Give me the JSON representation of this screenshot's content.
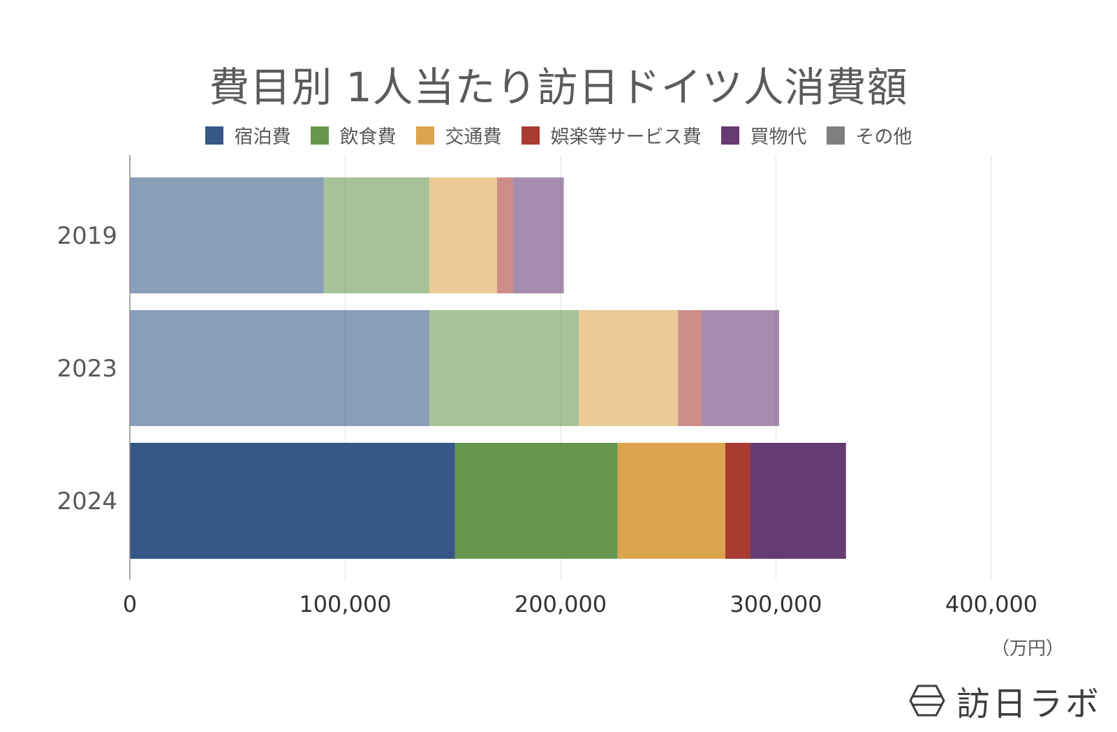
{
  "title": "費目別 1人当たり訪日ドイツ人消費額",
  "unit": "（万円）",
  "brand": {
    "name": "訪日ラボ",
    "icon": "hexagon-logo-icon"
  },
  "legend": [
    {
      "label": "宿泊費",
      "color": "#365787"
    },
    {
      "label": "飲食費",
      "color": "#66974d"
    },
    {
      "label": "交通費",
      "color": "#dca44e"
    },
    {
      "label": "娯楽等サービス費",
      "color": "#a93b33"
    },
    {
      "label": "買物代",
      "color": "#663b72"
    },
    {
      "label": "その他",
      "color": "#7f7f7f"
    }
  ],
  "chart_data": {
    "type": "bar",
    "orientation": "horizontal",
    "stacked": true,
    "categories": [
      "2019",
      "2023",
      "2024"
    ],
    "highlight_category": "2024",
    "xlim": [
      0,
      400000
    ],
    "x_ticks": [
      "0",
      "100,000",
      "200,000",
      "300,000",
      "400,000"
    ],
    "x_tick_values": [
      0,
      100000,
      200000,
      300000,
      400000
    ],
    "grid": true,
    "legend_position": "top",
    "series": [
      {
        "name": "宿泊費",
        "values": [
          90000,
          139000,
          151000
        ]
      },
      {
        "name": "飲食費",
        "values": [
          49000,
          69500,
          75500
        ]
      },
      {
        "name": "交通費",
        "values": [
          31500,
          46000,
          50000
        ]
      },
      {
        "name": "娯楽等サービス費",
        "values": [
          7500,
          11000,
          11500
        ]
      },
      {
        "name": "買物代",
        "values": [
          23500,
          36000,
          44500
        ]
      },
      {
        "name": "その他",
        "values": [
          0,
          0,
          0
        ]
      }
    ]
  }
}
